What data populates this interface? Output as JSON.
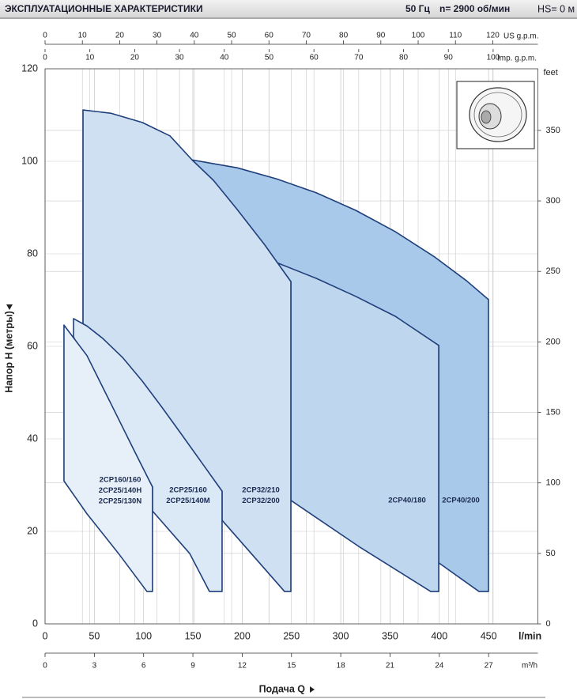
{
  "chart_data": {
    "type": "area",
    "title": "ЭКСПЛУАТАЦИОННЫЕ ХАРАКТЕРИСТИКИ",
    "frequency": "50 Гц",
    "speed": "n= 2900 об/мин",
    "suction": "HS= 0 м",
    "xlabel": "l/min",
    "xtitle": "Подача Q",
    "ylabel": "Напор H (метры)",
    "y2label": "feet",
    "xlim": [
      0,
      500
    ],
    "xticks": [
      0,
      50,
      100,
      150,
      200,
      250,
      300,
      350,
      400,
      450
    ],
    "ylim": [
      0,
      120
    ],
    "yticks": [
      0,
      20,
      40,
      60,
      80,
      100,
      120
    ],
    "y2lim": [
      0,
      393.7
    ],
    "y2ticks": [
      0,
      50,
      100,
      150,
      200,
      250,
      300,
      350
    ],
    "us_gpm": {
      "label": "US g.p.m.",
      "lim": [
        0,
        132.09
      ],
      "ticks": [
        0,
        10,
        20,
        30,
        40,
        50,
        60,
        70,
        80,
        90,
        100,
        110,
        120
      ]
    },
    "imp_gpm": {
      "label": "Imp. g.p.m.",
      "lim": [
        0,
        109.98
      ],
      "ticks": [
        0,
        10,
        20,
        30,
        40,
        50,
        60,
        70,
        80,
        90,
        100
      ]
    },
    "m3h": {
      "label": "m³/h",
      "lim": [
        0,
        30
      ],
      "ticks": [
        0,
        3,
        6,
        9,
        12,
        15,
        18,
        21,
        24,
        27
      ]
    },
    "grid": true,
    "stroke": "#1f3f7a",
    "series": [
      {
        "labels": [
          "2CP40/200"
        ],
        "color": "#a9c9eb",
        "x": [
          149.2,
          194.9,
          235,
          275.1,
          315.2,
          355.3,
          395.4,
          427.5,
          449.9,
          449.9,
          440.3,
          399.4,
          399.4,
          235
        ],
        "y": [
          100.3,
          98.6,
          96.2,
          93.2,
          89.4,
          84.8,
          79.3,
          74.2,
          70.1,
          7,
          7,
          13.2,
          60.2,
          78.1
        ]
      },
      {
        "labels": [
          "2CP40/180"
        ],
        "color": "#bfd6ef",
        "x": [
          235,
          275.1,
          315.2,
          355.3,
          399.4,
          399.4,
          391.3,
          320,
          249.4,
          249.4
        ],
        "y": [
          78.1,
          74.7,
          70.8,
          66.5,
          60.2,
          7,
          7,
          16.5,
          26.7,
          74
        ]
      },
      {
        "labels": [
          "2CP32/210",
          "2CP32/200"
        ],
        "color": "#cfe0f3",
        "x": [
          38.5,
          66.6,
          98.6,
          126.7,
          149.2,
          170.8,
          194.9,
          223,
          249.4,
          249.4,
          243,
          179.6,
          179.6,
          38.5
        ],
        "y": [
          111.1,
          110.4,
          108.4,
          105.5,
          100.3,
          95.9,
          89.6,
          81.9,
          74,
          7,
          7,
          22.4,
          28.7,
          64
        ]
      },
      {
        "labels": [
          "2CP25/160",
          "2CP25/140M"
        ],
        "color": "#dbe8f6",
        "x": [
          28.9,
          42.5,
          58.6,
          78.6,
          98.6,
          118.7,
          138.7,
          158.8,
          179.6,
          179.6,
          166.8,
          146.8,
          109,
          109,
          28.9
        ],
        "y": [
          66,
          64.4,
          61.7,
          57.6,
          52.5,
          46.8,
          40.9,
          34.9,
          28.7,
          7,
          7,
          15.2,
          24.4,
          29.6,
          62
        ]
      },
      {
        "labels": [
          "2CP160/160",
          "2CP25/140H",
          "2CP25/130N"
        ],
        "color": "#e7f0f9",
        "x": [
          19.2,
          42.5,
          66.6,
          90.6,
          109,
          109,
          103.4,
          74.6,
          42.5,
          19.2
        ],
        "y": [
          64.6,
          58,
          47.7,
          37.4,
          29.6,
          7,
          7,
          15.2,
          23.8,
          30.9
        ]
      }
    ]
  }
}
